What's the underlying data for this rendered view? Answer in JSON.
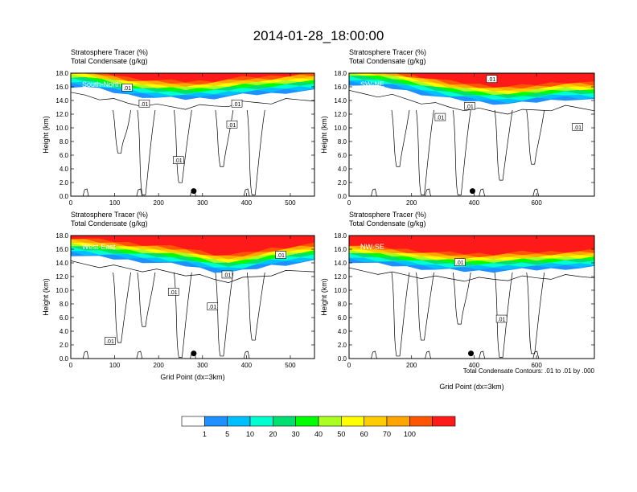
{
  "figure": {
    "title": "2014-01-28_18:00:00",
    "footnote": "Total Condensate Contours: .01 to .01 by .000"
  },
  "chart_data": [
    {
      "type": "heatmap",
      "panel_label": "South-North",
      "title_lines": [
        "Stratosphere Tracer   (%)",
        "Total Condensate   (g/kg)"
      ],
      "ylabel": "Height (km)",
      "xlabel": "",
      "xlim": [
        0,
        555
      ],
      "ylim": [
        0,
        18
      ],
      "xticks": [
        0,
        100,
        200,
        300,
        400,
        500
      ],
      "yticks": [
        "0.0",
        "2.0",
        "4.0",
        "6.0",
        "8.0",
        "10.0",
        "12.0",
        "14.0",
        "16.0",
        "18.0"
      ],
      "tracer_base_km": [
        16.1,
        16.0,
        15.6,
        15.2,
        14.8,
        14.6,
        14.4,
        14.3,
        14.2,
        14.3,
        14.4,
        14.6,
        14.8,
        14.9,
        15.0,
        15.2,
        15.3,
        15.4
      ],
      "contour_labels": [
        ".01",
        ".01",
        ".01",
        ".01",
        ".01"
      ],
      "marker_x": 280
    },
    {
      "type": "heatmap",
      "panel_label": "SW-NE",
      "title_lines": [
        "Stratosphere Tracer   (%)",
        "Total Condensate   (g/kg)"
      ],
      "ylabel": "Height (km)",
      "xlabel": "",
      "xlim": [
        0,
        785
      ],
      "ylim": [
        0,
        18
      ],
      "xticks": [
        0,
        200,
        400,
        600
      ],
      "yticks": [
        "0.0",
        "2.0",
        "4.0",
        "6.0",
        "8.0",
        "10.0",
        "12.0",
        "14.0",
        "16.0",
        "18.0"
      ],
      "tracer_base_km": [
        16.4,
        16.2,
        16.0,
        15.8,
        15.4,
        15.0,
        14.6,
        14.2,
        14.0,
        13.8,
        13.6,
        13.5,
        13.6,
        13.8,
        14.0,
        14.2,
        14.1,
        14.0
      ],
      "contour_labels": [
        ".01",
        ".01",
        ".01",
        ".01"
      ],
      "marker_x": 395
    },
    {
      "type": "heatmap",
      "panel_label": "West-East",
      "title_lines": [
        "Stratosphere Tracer   (%)",
        "Total Condensate   (g/kg)"
      ],
      "ylabel": "Height (km)",
      "xlabel": "Grid Point (dx=3km)",
      "xlim": [
        0,
        555
      ],
      "ylim": [
        0,
        18
      ],
      "xticks": [
        0,
        100,
        200,
        300,
        400,
        500
      ],
      "yticks": [
        "0.0",
        "2.0",
        "4.0",
        "6.0",
        "8.0",
        "10.0",
        "12.0",
        "14.0",
        "16.0",
        "18.0"
      ],
      "tracer_base_km": [
        15.2,
        15.0,
        14.8,
        14.6,
        14.4,
        14.2,
        14.0,
        13.8,
        13.6,
        13.2,
        12.8,
        12.6,
        12.8,
        13.2,
        13.6,
        13.8,
        14.0,
        14.2
      ],
      "contour_labels": [
        ".01",
        ".01",
        ".01",
        ".01",
        ".01"
      ],
      "marker_x": 280
    },
    {
      "type": "heatmap",
      "panel_label": "NW-SE",
      "title_lines": [
        "Stratosphere Tracer   (%)",
        "Total Condensate   (g/kg)"
      ],
      "ylabel": "Height (km)",
      "xlabel": "Grid Point (dx=3km)",
      "xlim": [
        0,
        785
      ],
      "ylim": [
        0,
        18
      ],
      "xticks": [
        0,
        200,
        400,
        600
      ],
      "yticks": [
        "0.0",
        "2.0",
        "4.0",
        "6.0",
        "8.0",
        "10.0",
        "12.0",
        "14.0",
        "16.0",
        "18.0"
      ],
      "tracer_base_km": [
        14.2,
        14.0,
        13.8,
        13.6,
        13.4,
        13.2,
        13.0,
        12.9,
        12.8,
        12.8,
        12.8,
        12.9,
        13.0,
        13.0,
        13.1,
        13.2,
        13.2,
        13.3
      ],
      "contour_labels": [
        ".01",
        ".01"
      ],
      "marker_x": 390
    }
  ],
  "colorbar": {
    "labels": [
      "1",
      "5",
      "10",
      "20",
      "30",
      "40",
      "50",
      "60",
      "70",
      "100"
    ],
    "colors": [
      "#ffffff",
      "#1e90ff",
      "#00bfff",
      "#00ffd0",
      "#00e070",
      "#00ff00",
      "#aaff22",
      "#ffff00",
      "#ffcc00",
      "#ffa500",
      "#ff5500",
      "#ff1a1a"
    ]
  }
}
